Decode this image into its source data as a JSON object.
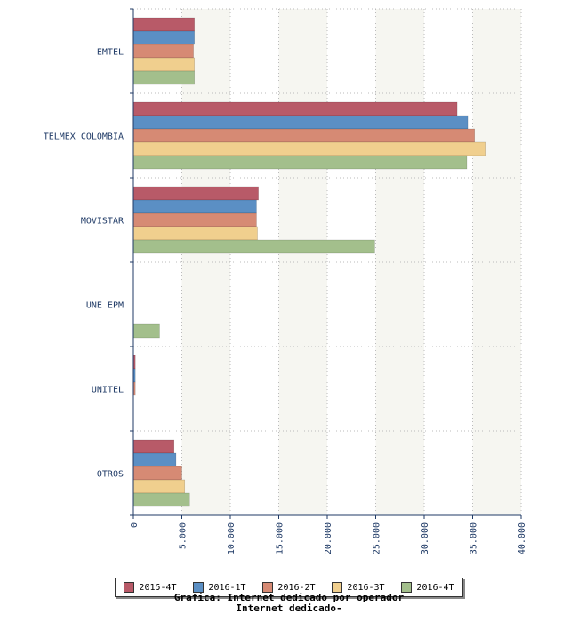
{
  "chart_data": {
    "type": "bar",
    "orientation": "horizontal",
    "categories": [
      "EMTEL",
      "TELMEX COLOMBIA",
      "MOVISTAR",
      "UNE EPM",
      "UNITEL",
      "OTROS"
    ],
    "series": [
      {
        "name": "2015-4T",
        "color": "#b85a68",
        "values": [
          6300,
          33400,
          12900,
          0,
          200,
          4200
        ]
      },
      {
        "name": "2016-1T",
        "color": "#5b8fc4",
        "values": [
          6300,
          34500,
          12700,
          0,
          200,
          4400
        ]
      },
      {
        "name": "2016-2T",
        "color": "#d68a74",
        "values": [
          6200,
          35200,
          12700,
          0,
          200,
          5000
        ]
      },
      {
        "name": "2016-3T",
        "color": "#f0cf8e",
        "values": [
          6300,
          36300,
          12800,
          0,
          0,
          5300
        ]
      },
      {
        "name": "2016-4T",
        "color": "#a3bf8c",
        "values": [
          6300,
          34400,
          24900,
          2700,
          0,
          5800
        ]
      }
    ],
    "xlim": [
      0,
      40000
    ],
    "ticks": [
      "0",
      "5.000",
      "10.000",
      "15.000",
      "20.000",
      "25.000",
      "30.000",
      "35.000",
      "40.000"
    ],
    "title": "Grafica: Internet dedicado por operador",
    "subtitle": "Internet dedicado-",
    "legend_position": "bottom",
    "grid": true
  }
}
